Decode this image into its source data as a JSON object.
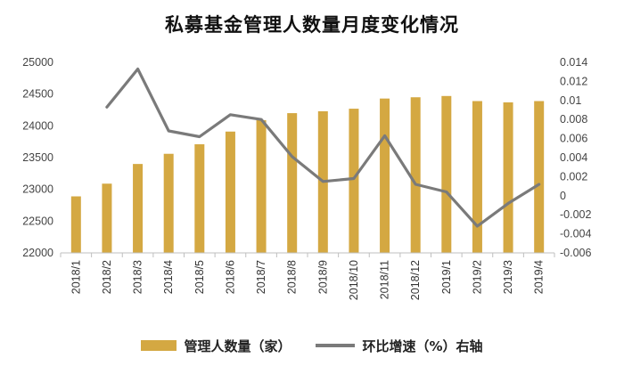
{
  "chart_data": {
    "type": "bar",
    "title": "私募基金管理人数量月度变化情况",
    "categories": [
      "2018/1",
      "2018/2",
      "2018/3",
      "2018/4",
      "2018/5",
      "2018/6",
      "2018/7",
      "2018/8",
      "2018/9",
      "2018/10",
      "2018/11",
      "2018/12",
      "2019/1",
      "2019/2",
      "2019/3",
      "2019/4"
    ],
    "series": [
      {
        "name": "管理人数量（家）",
        "type": "bar",
        "axis": "left",
        "color": "#D4A842",
        "values": [
          22890,
          23090,
          23400,
          23560,
          23710,
          23910,
          24090,
          24200,
          24230,
          24270,
          24430,
          24450,
          24470,
          24390,
          24370,
          24390
        ]
      },
      {
        "name": "环比增速（%）右轴",
        "type": "line",
        "axis": "right",
        "color": "#7A7A7A",
        "values": [
          null,
          0.0093,
          0.0133,
          0.0068,
          0.0062,
          0.0085,
          0.008,
          0.0041,
          0.0015,
          0.0018,
          0.0063,
          0.0012,
          0.0004,
          -0.0032,
          -0.0008,
          0.0012
        ]
      }
    ],
    "y_left": {
      "ylim": [
        22000,
        25000
      ],
      "ticks": [
        "22000",
        "22500",
        "23000",
        "23500",
        "24000",
        "24500",
        "25000"
      ]
    },
    "y_right": {
      "ylim": [
        -0.006,
        0.014
      ],
      "ticks": [
        "-0.006",
        "-0.004",
        "-0.002",
        "0",
        "0.002",
        "0.004",
        "0.006",
        "0.008",
        "0.01",
        "0.012",
        "0.014"
      ]
    },
    "legend_position": "bottom",
    "grid": false
  }
}
